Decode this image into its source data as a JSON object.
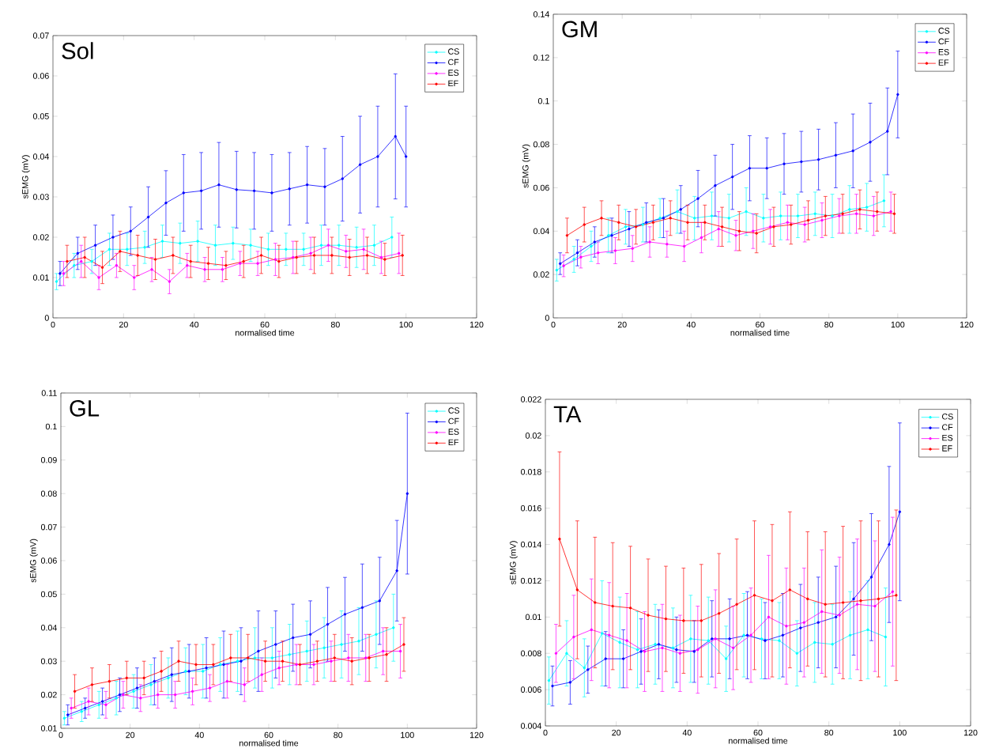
{
  "chart_data": [
    {
      "type": "line",
      "title": "Sol",
      "xlabel": "normalised time",
      "ylabel": "sEMG (mV)",
      "legend": "top right",
      "marker": "circle",
      "xlim": [
        0,
        120
      ],
      "xticks": [
        0,
        20,
        40,
        60,
        80,
        100,
        120
      ],
      "ylim": [
        0,
        0.07
      ],
      "yticks": [
        0,
        0.01,
        0.02,
        0.03,
        0.04,
        0.05,
        0.06,
        0.07
      ],
      "series": [
        {
          "name": "CS",
          "color": "#00ffff",
          "x": [
            1,
            6,
            11,
            16,
            21,
            26,
            31,
            36,
            41,
            46,
            51,
            56,
            61,
            66,
            71,
            76,
            81,
            86,
            91,
            96
          ],
          "values": [
            0.009,
            0.013,
            0.014,
            0.017,
            0.017,
            0.0175,
            0.019,
            0.0185,
            0.019,
            0.018,
            0.0185,
            0.018,
            0.017,
            0.017,
            0.017,
            0.018,
            0.018,
            0.0175,
            0.018,
            0.02
          ],
          "errors": [
            0.002,
            0.003,
            0.003,
            0.004,
            0.004,
            0.004,
            0.004,
            0.005,
            0.005,
            0.005,
            0.004,
            0.004,
            0.004,
            0.004,
            0.004,
            0.005,
            0.005,
            0.005,
            0.005,
            0.005
          ]
        },
        {
          "name": "CF",
          "color": "#0000ff",
          "x": [
            2,
            7,
            12,
            17,
            22,
            27,
            32,
            37,
            42,
            47,
            52,
            57,
            62,
            67,
            72,
            77,
            82,
            87,
            92,
            97,
            100
          ],
          "values": [
            0.011,
            0.016,
            0.018,
            0.02,
            0.0215,
            0.025,
            0.0285,
            0.031,
            0.0315,
            0.033,
            0.0318,
            0.0315,
            0.031,
            0.032,
            0.033,
            0.0325,
            0.0345,
            0.038,
            0.04,
            0.045,
            0.04
          ],
          "errors": [
            0.003,
            0.004,
            0.005,
            0.0055,
            0.006,
            0.0075,
            0.008,
            0.0095,
            0.0095,
            0.0105,
            0.0095,
            0.0095,
            0.0095,
            0.009,
            0.0095,
            0.0095,
            0.0105,
            0.012,
            0.0125,
            0.0155,
            0.0125
          ]
        },
        {
          "name": "ES",
          "color": "#ff00ff",
          "x": [
            3,
            8,
            13,
            18,
            23,
            28,
            33,
            38,
            43,
            48,
            53,
            58,
            63,
            68,
            73,
            78,
            83,
            88,
            93,
            98
          ],
          "values": [
            0.011,
            0.014,
            0.01,
            0.013,
            0.01,
            0.012,
            0.009,
            0.013,
            0.012,
            0.012,
            0.0135,
            0.0135,
            0.0145,
            0.015,
            0.016,
            0.018,
            0.0165,
            0.017,
            0.015,
            0.016
          ],
          "errors": [
            0.003,
            0.004,
            0.003,
            0.003,
            0.003,
            0.003,
            0.003,
            0.003,
            0.003,
            0.003,
            0.003,
            0.003,
            0.004,
            0.004,
            0.004,
            0.004,
            0.004,
            0.005,
            0.004,
            0.005
          ]
        },
        {
          "name": "EF",
          "color": "#ff0000",
          "x": [
            4,
            9,
            14,
            19,
            24,
            29,
            34,
            39,
            44,
            49,
            54,
            59,
            64,
            69,
            74,
            79,
            84,
            89,
            94,
            99
          ],
          "values": [
            0.014,
            0.015,
            0.0125,
            0.0165,
            0.0155,
            0.0145,
            0.0155,
            0.014,
            0.0135,
            0.013,
            0.014,
            0.0155,
            0.014,
            0.015,
            0.0155,
            0.0155,
            0.015,
            0.0155,
            0.0145,
            0.0155
          ],
          "errors": [
            0.004,
            0.005,
            0.004,
            0.005,
            0.005,
            0.005,
            0.0045,
            0.004,
            0.004,
            0.0035,
            0.004,
            0.0045,
            0.004,
            0.004,
            0.0045,
            0.0045,
            0.0045,
            0.0045,
            0.004,
            0.005
          ]
        }
      ]
    },
    {
      "type": "line",
      "title": "GM",
      "xlabel": "normalised time",
      "ylabel": "sEMG (mV)",
      "legend": "top right",
      "marker": "circle",
      "xlim": [
        0,
        120
      ],
      "xticks": [
        0,
        20,
        40,
        60,
        80,
        100,
        120
      ],
      "ylim": [
        0,
        0.14
      ],
      "yticks": [
        0,
        0.02,
        0.04,
        0.06,
        0.08,
        0.1,
        0.12,
        0.14
      ],
      "series": [
        {
          "name": "CS",
          "color": "#00ffff",
          "x": [
            1,
            6,
            11,
            16,
            21,
            26,
            31,
            36,
            41,
            46,
            51,
            56,
            61,
            66,
            71,
            76,
            81,
            86,
            91,
            96
          ],
          "values": [
            0.022,
            0.027,
            0.033,
            0.038,
            0.042,
            0.043,
            0.046,
            0.049,
            0.046,
            0.047,
            0.046,
            0.049,
            0.046,
            0.047,
            0.047,
            0.048,
            0.047,
            0.05,
            0.051,
            0.054
          ],
          "errors": [
            0.005,
            0.006,
            0.007,
            0.008,
            0.008,
            0.008,
            0.009,
            0.01,
            0.01,
            0.011,
            0.011,
            0.011,
            0.011,
            0.011,
            0.01,
            0.01,
            0.01,
            0.011,
            0.011,
            0.012
          ]
        },
        {
          "name": "CF",
          "color": "#0000ff",
          "x": [
            2,
            7,
            12,
            17,
            22,
            27,
            32,
            37,
            42,
            47,
            52,
            57,
            62,
            67,
            72,
            77,
            82,
            87,
            92,
            97,
            100
          ],
          "values": [
            0.025,
            0.03,
            0.035,
            0.038,
            0.041,
            0.044,
            0.046,
            0.05,
            0.055,
            0.061,
            0.065,
            0.069,
            0.069,
            0.071,
            0.072,
            0.073,
            0.075,
            0.077,
            0.081,
            0.086,
            0.103
          ],
          "errors": [
            0.005,
            0.006,
            0.007,
            0.008,
            0.008,
            0.009,
            0.009,
            0.011,
            0.013,
            0.014,
            0.015,
            0.015,
            0.014,
            0.014,
            0.014,
            0.014,
            0.015,
            0.017,
            0.018,
            0.02,
            0.02
          ]
        },
        {
          "name": "ES",
          "color": "#ff00ff",
          "x": [
            3,
            8,
            13,
            18,
            23,
            28,
            33,
            38,
            43,
            48,
            53,
            58,
            63,
            68,
            73,
            78,
            83,
            88,
            93,
            98
          ],
          "values": [
            0.024,
            0.028,
            0.03,
            0.031,
            0.032,
            0.035,
            0.034,
            0.033,
            0.037,
            0.041,
            0.038,
            0.04,
            0.042,
            0.044,
            0.043,
            0.045,
            0.047,
            0.048,
            0.047,
            0.049
          ],
          "errors": [
            0.005,
            0.005,
            0.005,
            0.006,
            0.006,
            0.007,
            0.006,
            0.007,
            0.007,
            0.008,
            0.007,
            0.008,
            0.008,
            0.008,
            0.008,
            0.008,
            0.008,
            0.009,
            0.009,
            0.009
          ]
        },
        {
          "name": "EF",
          "color": "#ff0000",
          "x": [
            4,
            9,
            14,
            19,
            24,
            29,
            34,
            39,
            44,
            49,
            54,
            59,
            64,
            69,
            74,
            79,
            84,
            89,
            94,
            99
          ],
          "values": [
            0.038,
            0.043,
            0.046,
            0.044,
            0.042,
            0.044,
            0.046,
            0.044,
            0.044,
            0.042,
            0.04,
            0.039,
            0.042,
            0.043,
            0.045,
            0.047,
            0.048,
            0.05,
            0.049,
            0.048
          ],
          "errors": [
            0.008,
            0.008,
            0.008,
            0.008,
            0.008,
            0.008,
            0.008,
            0.008,
            0.008,
            0.009,
            0.009,
            0.009,
            0.009,
            0.009,
            0.009,
            0.009,
            0.009,
            0.009,
            0.009,
            0.009
          ]
        }
      ]
    },
    {
      "type": "line",
      "title": "GL",
      "xlabel": "normalised time",
      "ylabel": "sEMG (mV)",
      "legend": "top right",
      "marker": "circle",
      "xlim": [
        0,
        120
      ],
      "xticks": [
        0,
        20,
        40,
        60,
        80,
        100,
        120
      ],
      "ylim": [
        0.01,
        0.11
      ],
      "yticks": [
        0.01,
        0.02,
        0.03,
        0.04,
        0.05,
        0.06,
        0.07,
        0.08,
        0.09,
        0.1,
        0.11
      ],
      "series": [
        {
          "name": "CS",
          "color": "#00ffff",
          "x": [
            1,
            6,
            11,
            16,
            21,
            26,
            31,
            36,
            41,
            46,
            51,
            56,
            61,
            66,
            71,
            76,
            81,
            86,
            91,
            96
          ],
          "values": [
            0.013,
            0.015,
            0.017,
            0.019,
            0.021,
            0.023,
            0.025,
            0.027,
            0.027,
            0.029,
            0.03,
            0.031,
            0.031,
            0.032,
            0.033,
            0.034,
            0.035,
            0.036,
            0.038,
            0.04
          ],
          "errors": [
            0.002,
            0.003,
            0.004,
            0.005,
            0.005,
            0.006,
            0.006,
            0.007,
            0.008,
            0.008,
            0.009,
            0.009,
            0.009,
            0.009,
            0.009,
            0.009,
            0.01,
            0.01,
            0.01,
            0.01
          ]
        },
        {
          "name": "CF",
          "color": "#0000ff",
          "x": [
            2,
            7,
            12,
            17,
            22,
            27,
            32,
            37,
            42,
            47,
            52,
            57,
            62,
            67,
            72,
            77,
            82,
            87,
            92,
            97,
            100
          ],
          "values": [
            0.014,
            0.016,
            0.018,
            0.02,
            0.022,
            0.024,
            0.026,
            0.027,
            0.028,
            0.029,
            0.03,
            0.033,
            0.035,
            0.037,
            0.038,
            0.041,
            0.044,
            0.046,
            0.048,
            0.057,
            0.08
          ],
          "errors": [
            0.003,
            0.003,
            0.004,
            0.005,
            0.006,
            0.007,
            0.008,
            0.008,
            0.009,
            0.01,
            0.01,
            0.012,
            0.01,
            0.01,
            0.01,
            0.011,
            0.011,
            0.013,
            0.013,
            0.015,
            0.024
          ]
        },
        {
          "name": "ES",
          "color": "#ff00ff",
          "x": [
            3,
            8,
            13,
            18,
            23,
            28,
            33,
            38,
            43,
            48,
            53,
            58,
            63,
            68,
            73,
            78,
            83,
            88,
            93,
            98
          ],
          "values": [
            0.016,
            0.018,
            0.017,
            0.02,
            0.019,
            0.02,
            0.02,
            0.021,
            0.022,
            0.024,
            0.023,
            0.026,
            0.028,
            0.029,
            0.029,
            0.03,
            0.031,
            0.031,
            0.033,
            0.033
          ],
          "errors": [
            0.003,
            0.004,
            0.004,
            0.004,
            0.004,
            0.004,
            0.004,
            0.004,
            0.004,
            0.005,
            0.005,
            0.005,
            0.005,
            0.006,
            0.006,
            0.006,
            0.007,
            0.007,
            0.007,
            0.008
          ]
        },
        {
          "name": "EF",
          "color": "#ff0000",
          "x": [
            4,
            9,
            14,
            19,
            24,
            29,
            34,
            39,
            44,
            49,
            54,
            59,
            64,
            69,
            74,
            79,
            84,
            89,
            94,
            99
          ],
          "values": [
            0.021,
            0.023,
            0.024,
            0.025,
            0.025,
            0.027,
            0.03,
            0.029,
            0.029,
            0.031,
            0.031,
            0.03,
            0.03,
            0.029,
            0.03,
            0.031,
            0.03,
            0.031,
            0.032,
            0.035
          ],
          "errors": [
            0.005,
            0.005,
            0.005,
            0.005,
            0.005,
            0.006,
            0.006,
            0.006,
            0.006,
            0.007,
            0.007,
            0.006,
            0.006,
            0.006,
            0.006,
            0.007,
            0.007,
            0.007,
            0.008,
            0.008
          ]
        }
      ]
    },
    {
      "type": "line",
      "title": "TA",
      "xlabel": "normalised time",
      "ylabel": "sEMG (mV)",
      "legend": "top right",
      "marker": "circle",
      "xlim": [
        0,
        120
      ],
      "xticks": [
        0,
        20,
        40,
        60,
        80,
        100,
        120
      ],
      "ylim": [
        0.004,
        0.022
      ],
      "yticks": [
        0.004,
        0.006,
        0.008,
        0.01,
        0.012,
        0.014,
        0.016,
        0.018,
        0.02,
        0.022
      ],
      "series": [
        {
          "name": "CS",
          "color": "#00ffff",
          "x": [
            1,
            6,
            11,
            16,
            21,
            26,
            31,
            36,
            41,
            46,
            51,
            56,
            61,
            66,
            71,
            76,
            81,
            86,
            91,
            96
          ],
          "values": [
            0.0065,
            0.008,
            0.0072,
            0.0091,
            0.0086,
            0.0082,
            0.0085,
            0.0083,
            0.0088,
            0.0087,
            0.0077,
            0.009,
            0.0088,
            0.0087,
            0.008,
            0.0086,
            0.0085,
            0.009,
            0.0093,
            0.0089
          ],
          "errors": [
            0.0013,
            0.0018,
            0.0016,
            0.0029,
            0.0025,
            0.0021,
            0.0022,
            0.0022,
            0.0024,
            0.0024,
            0.0018,
            0.0023,
            0.0022,
            0.0021,
            0.0018,
            0.0022,
            0.0022,
            0.0024,
            0.0027,
            0.0027
          ]
        },
        {
          "name": "CF",
          "color": "#0000ff",
          "x": [
            2,
            7,
            12,
            17,
            22,
            27,
            32,
            37,
            42,
            47,
            52,
            57,
            62,
            67,
            72,
            77,
            82,
            87,
            92,
            97,
            100
          ],
          "values": [
            0.0062,
            0.0064,
            0.0071,
            0.0077,
            0.0077,
            0.0081,
            0.0085,
            0.0082,
            0.0081,
            0.0088,
            0.0088,
            0.009,
            0.0087,
            0.009,
            0.0094,
            0.0097,
            0.01,
            0.011,
            0.0122,
            0.014,
            0.0158
          ],
          "errors": [
            0.0011,
            0.0012,
            0.0013,
            0.0015,
            0.0016,
            0.0018,
            0.0019,
            0.0018,
            0.0017,
            0.0021,
            0.0022,
            0.0024,
            0.0021,
            0.0023,
            0.0024,
            0.0025,
            0.0028,
            0.0031,
            0.0035,
            0.0043,
            0.0049
          ]
        },
        {
          "name": "ES",
          "color": "#ff00ff",
          "x": [
            3,
            8,
            13,
            18,
            23,
            28,
            33,
            38,
            43,
            48,
            53,
            58,
            63,
            68,
            73,
            78,
            83,
            88,
            93,
            98
          ],
          "values": [
            0.008,
            0.0089,
            0.0093,
            0.009,
            0.0087,
            0.0081,
            0.0083,
            0.008,
            0.0082,
            0.0088,
            0.0083,
            0.009,
            0.01,
            0.0095,
            0.0097,
            0.0103,
            0.0101,
            0.0107,
            0.0106,
            0.0114
          ],
          "errors": [
            0.0016,
            0.0023,
            0.0028,
            0.0029,
            0.0026,
            0.0022,
            0.0024,
            0.0021,
            0.0024,
            0.0027,
            0.0023,
            0.0026,
            0.0034,
            0.0032,
            0.003,
            0.0034,
            0.0032,
            0.0036,
            0.0036,
            0.0041
          ]
        },
        {
          "name": "EF",
          "color": "#ff0000",
          "x": [
            4,
            9,
            14,
            19,
            24,
            29,
            34,
            39,
            44,
            49,
            54,
            59,
            64,
            69,
            74,
            79,
            84,
            89,
            94,
            99
          ],
          "values": [
            0.0143,
            0.0115,
            0.0108,
            0.0106,
            0.0105,
            0.0101,
            0.0099,
            0.0098,
            0.0098,
            0.0102,
            0.0107,
            0.0112,
            0.0109,
            0.0115,
            0.011,
            0.0107,
            0.0108,
            0.0109,
            0.011,
            0.0112
          ],
          "errors": [
            0.0048,
            0.0038,
            0.0036,
            0.0035,
            0.0034,
            0.0031,
            0.0029,
            0.0029,
            0.0031,
            0.0033,
            0.0036,
            0.0041,
            0.0042,
            0.0043,
            0.0037,
            0.004,
            0.0042,
            0.0044,
            0.0043,
            0.0047
          ]
        }
      ]
    }
  ]
}
